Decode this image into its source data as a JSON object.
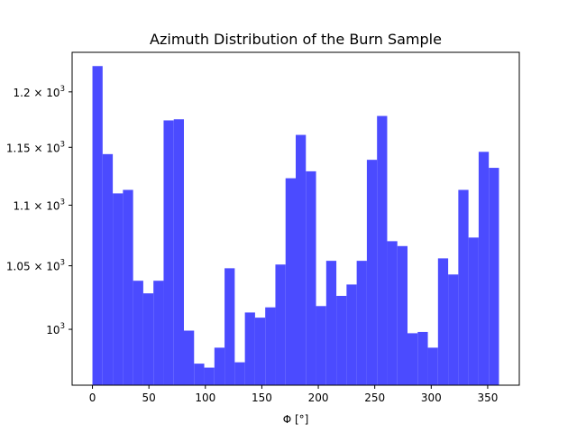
{
  "chart_data": {
    "type": "bar",
    "title": "Azimuth Distribution of the Burn Sample",
    "xlabel": "Φ [°]",
    "ylabel": "",
    "y_scale": "log",
    "color": "#4b4bff",
    "bin_width": 9,
    "xlim": [
      -18,
      378
    ],
    "ylim": [
      958,
      1237
    ],
    "x_ticks": [
      0,
      50,
      100,
      150,
      200,
      250,
      300,
      350
    ],
    "x_tick_labels": [
      "0",
      "50",
      "100",
      "150",
      "200",
      "250",
      "300",
      "350"
    ],
    "y_ticks": [
      1000,
      1050,
      1100,
      1150,
      1200
    ],
    "y_tick_labels": [
      {
        "mantissa": "10",
        "exp": "3"
      },
      {
        "mantissa": "1.05 × 10",
        "exp": "3"
      },
      {
        "mantissa": "1.1 × 10",
        "exp": "3"
      },
      {
        "mantissa": "1.15 × 10",
        "exp": "3"
      },
      {
        "mantissa": "1.2 × 10",
        "exp": "3"
      }
    ],
    "bin_edges": [
      0,
      9,
      18,
      27,
      36,
      45,
      54,
      63,
      72,
      81,
      90,
      99,
      108,
      117,
      126,
      135,
      144,
      153,
      162,
      171,
      180,
      189,
      198,
      207,
      216,
      225,
      234,
      243,
      252,
      261,
      270,
      279,
      288,
      297,
      306,
      315,
      324,
      333,
      342,
      351,
      360
    ],
    "values": [
      1224,
      1144,
      1110,
      1113,
      1038,
      1028,
      1038,
      1174,
      1175,
      999,
      974,
      971,
      986,
      1048,
      975,
      1013,
      1009,
      1017,
      1051,
      1123,
      1161,
      1129,
      1018,
      1054,
      1026,
      1035,
      1054,
      1139,
      1178,
      1070,
      1066,
      997,
      998,
      986,
      1056,
      1043,
      1113,
      1073,
      1146,
      1132
    ]
  }
}
